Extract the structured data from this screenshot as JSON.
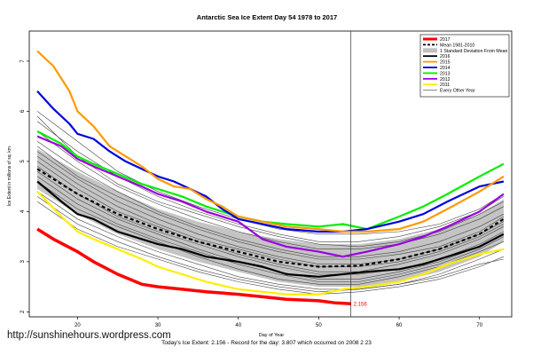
{
  "chart_data": {
    "type": "line",
    "title": "Antarctic Sea Ice Extent Day 54 1978 to 2017",
    "xlabel": "Day of Year",
    "ylabel": "Ice Extent in millions of sq. km.",
    "xlim": [
      14,
      74
    ],
    "ylim": [
      1.9,
      7.6
    ],
    "xticks": [
      20,
      30,
      40,
      50,
      60,
      70
    ],
    "yticks": [
      2,
      3,
      4,
      5,
      6,
      7
    ],
    "current_day": 54,
    "last_value_label": "2.156",
    "legend_position": "top-right",
    "legend": [
      {
        "label": "2017",
        "color": "#ff0000",
        "style": "thick"
      },
      {
        "label": "Mean 1981-2010",
        "color": "#000000",
        "style": "dashed"
      },
      {
        "label": "1 Standard Deviation From Mean",
        "color": "#c0c0c0",
        "style": "band"
      },
      {
        "label": "2016",
        "color": "#000000",
        "style": "solid"
      },
      {
        "label": "2015",
        "color": "#ff9900",
        "style": "solid"
      },
      {
        "label": "2014",
        "color": "#0000dd",
        "style": "solid"
      },
      {
        "label": "2013",
        "color": "#00ee00",
        "style": "solid"
      },
      {
        "label": "2012",
        "color": "#9900dd",
        "style": "solid"
      },
      {
        "label": "2011",
        "color": "#ffee00",
        "style": "solid"
      },
      {
        "label": "Every Other Year",
        "color": "#555555",
        "style": "thin"
      }
    ],
    "mean": {
      "x": [
        15,
        20,
        25,
        30,
        35,
        40,
        45,
        50,
        55,
        60,
        65,
        70,
        73
      ],
      "values": [
        4.85,
        4.35,
        3.95,
        3.65,
        3.4,
        3.2,
        3.0,
        2.9,
        2.92,
        3.05,
        3.25,
        3.55,
        3.85
      ]
    },
    "std_band": {
      "x": [
        15,
        20,
        25,
        30,
        35,
        40,
        45,
        50,
        55,
        60,
        65,
        70,
        73
      ],
      "upper": [
        5.25,
        4.8,
        4.4,
        4.05,
        3.8,
        3.6,
        3.45,
        3.35,
        3.35,
        3.45,
        3.65,
        3.95,
        4.25
      ],
      "lower": [
        4.45,
        3.95,
        3.55,
        3.25,
        3.0,
        2.8,
        2.6,
        2.5,
        2.5,
        2.6,
        2.8,
        3.1,
        3.4
      ]
    },
    "series": [
      {
        "name": "2017",
        "color": "#ff0000",
        "width": 3.5,
        "x": [
          15,
          17,
          20,
          22,
          25,
          28,
          30,
          33,
          36,
          40,
          43,
          46,
          50,
          52,
          54
        ],
        "values": [
          3.65,
          3.45,
          3.2,
          3.0,
          2.75,
          2.55,
          2.5,
          2.45,
          2.4,
          2.35,
          2.3,
          2.25,
          2.22,
          2.18,
          2.16
        ]
      },
      {
        "name": "2016",
        "color": "#000000",
        "width": 2.2,
        "x": [
          15,
          18,
          20,
          22,
          25,
          28,
          30,
          33,
          36,
          40,
          43,
          46,
          50,
          53,
          56,
          60,
          63,
          66,
          70,
          73
        ],
        "values": [
          4.6,
          4.2,
          3.95,
          3.85,
          3.6,
          3.45,
          3.35,
          3.25,
          3.1,
          3.0,
          2.9,
          2.75,
          2.7,
          2.75,
          2.8,
          2.85,
          2.95,
          3.1,
          3.3,
          3.55
        ]
      },
      {
        "name": "2015",
        "color": "#ff9900",
        "width": 2.2,
        "x": [
          15,
          17,
          19,
          20,
          22,
          24,
          26,
          28,
          30,
          32,
          34,
          36,
          38,
          40,
          43,
          46,
          50,
          53,
          56,
          60,
          63,
          66,
          70,
          73
        ],
        "values": [
          7.2,
          6.9,
          6.4,
          6.0,
          5.7,
          5.3,
          5.1,
          4.9,
          4.65,
          4.5,
          4.45,
          4.25,
          4.1,
          3.9,
          3.8,
          3.7,
          3.65,
          3.6,
          3.6,
          3.65,
          3.8,
          4.05,
          4.4,
          4.7
        ]
      },
      {
        "name": "2014",
        "color": "#0000dd",
        "width": 2.2,
        "x": [
          15,
          17,
          19,
          20,
          22,
          24,
          26,
          28,
          30,
          32,
          34,
          36,
          38,
          40,
          43,
          46,
          50,
          53,
          56,
          60,
          63,
          66,
          70,
          73
        ],
        "values": [
          6.4,
          6.05,
          5.75,
          5.55,
          5.45,
          5.2,
          5.0,
          4.85,
          4.7,
          4.6,
          4.45,
          4.3,
          4.05,
          3.85,
          3.75,
          3.65,
          3.6,
          3.6,
          3.65,
          3.8,
          3.95,
          4.2,
          4.5,
          4.6
        ]
      },
      {
        "name": "2013",
        "color": "#00ee00",
        "width": 2.2,
        "x": [
          15,
          18,
          20,
          22,
          25,
          28,
          30,
          33,
          36,
          40,
          43,
          46,
          50,
          53,
          56,
          60,
          63,
          66,
          70,
          73
        ],
        "values": [
          5.6,
          5.35,
          5.1,
          4.95,
          4.75,
          4.55,
          4.45,
          4.3,
          4.1,
          3.9,
          3.8,
          3.75,
          3.7,
          3.75,
          3.65,
          3.9,
          4.1,
          4.35,
          4.7,
          4.95
        ]
      },
      {
        "name": "2012",
        "color": "#9900dd",
        "width": 2.2,
        "x": [
          15,
          18,
          20,
          22,
          25,
          28,
          30,
          33,
          36,
          40,
          43,
          46,
          50,
          53,
          56,
          60,
          63,
          66,
          70,
          73
        ],
        "values": [
          5.5,
          5.3,
          5.05,
          4.9,
          4.7,
          4.5,
          4.35,
          4.2,
          4.0,
          3.8,
          3.45,
          3.3,
          3.2,
          3.1,
          3.2,
          3.35,
          3.5,
          3.7,
          4.0,
          4.35
        ]
      },
      {
        "name": "2011",
        "color": "#ffee00",
        "width": 2.2,
        "x": [
          15,
          18,
          20,
          22,
          25,
          28,
          30,
          33,
          36,
          40,
          43,
          46,
          50,
          53,
          56,
          60,
          63,
          66,
          70,
          73
        ],
        "values": [
          4.4,
          3.9,
          3.6,
          3.45,
          3.25,
          3.05,
          2.9,
          2.75,
          2.6,
          2.45,
          2.4,
          2.35,
          2.35,
          2.45,
          2.5,
          2.6,
          2.75,
          2.95,
          3.15,
          3.25
        ]
      }
    ],
    "other_years": [
      {
        "x": [
          15,
          20,
          25,
          30,
          35,
          40,
          45,
          50,
          55,
          60,
          65,
          70,
          73
        ],
        "values": [
          6.0,
          5.4,
          4.8,
          4.4,
          4.1,
          3.85,
          3.65,
          3.55,
          3.55,
          3.6,
          3.75,
          4.05,
          4.35
        ]
      },
      {
        "x": [
          15,
          20,
          25,
          30,
          35,
          40,
          45,
          50,
          55,
          60,
          65,
          70,
          73
        ],
        "values": [
          5.8,
          5.2,
          4.7,
          4.3,
          4.0,
          3.75,
          3.55,
          3.4,
          3.4,
          3.5,
          3.7,
          4.0,
          4.3
        ]
      },
      {
        "x": [
          15,
          20,
          25,
          30,
          35,
          40,
          45,
          50,
          55,
          60,
          65,
          70,
          73
        ],
        "values": [
          5.6,
          5.0,
          4.5,
          4.15,
          3.85,
          3.6,
          3.4,
          3.25,
          3.25,
          3.35,
          3.55,
          3.85,
          4.1
        ]
      },
      {
        "x": [
          15,
          20,
          25,
          30,
          35,
          40,
          45,
          50,
          55,
          60,
          65,
          70,
          73
        ],
        "values": [
          5.4,
          4.85,
          4.4,
          4.0,
          3.7,
          3.45,
          3.25,
          3.1,
          3.1,
          3.2,
          3.4,
          3.7,
          3.95
        ]
      },
      {
        "x": [
          15,
          20,
          25,
          30,
          35,
          40,
          45,
          50,
          55,
          60,
          65,
          70,
          73
        ],
        "values": [
          5.2,
          4.65,
          4.2,
          3.85,
          3.55,
          3.3,
          3.1,
          2.95,
          2.95,
          3.05,
          3.25,
          3.55,
          3.8
        ]
      },
      {
        "x": [
          15,
          20,
          25,
          30,
          35,
          40,
          45,
          50,
          55,
          60,
          65,
          70,
          73
        ],
        "values": [
          5.0,
          4.45,
          4.0,
          3.7,
          3.4,
          3.15,
          2.95,
          2.8,
          2.8,
          2.95,
          3.15,
          3.45,
          3.7
        ]
      },
      {
        "x": [
          15,
          20,
          25,
          30,
          35,
          40,
          45,
          50,
          55,
          60,
          65,
          70,
          73
        ],
        "values": [
          4.8,
          4.25,
          3.85,
          3.55,
          3.25,
          3.0,
          2.8,
          2.65,
          2.65,
          2.8,
          3.0,
          3.3,
          3.55
        ]
      },
      {
        "x": [
          15,
          20,
          25,
          30,
          35,
          40,
          45,
          50,
          55,
          60,
          65,
          70,
          73
        ],
        "values": [
          4.6,
          4.05,
          3.7,
          3.4,
          3.1,
          2.85,
          2.65,
          2.55,
          2.55,
          2.7,
          2.9,
          3.2,
          3.4
        ]
      },
      {
        "x": [
          15,
          20,
          25,
          30,
          35,
          40,
          45,
          50,
          55,
          60,
          65,
          70,
          73
        ],
        "values": [
          4.4,
          3.85,
          3.5,
          3.2,
          2.95,
          2.7,
          2.55,
          2.45,
          2.45,
          2.55,
          2.75,
          3.05,
          3.25
        ]
      },
      {
        "x": [
          15,
          20,
          25,
          30,
          35,
          40,
          45,
          50,
          55,
          60,
          65,
          70,
          73
        ],
        "values": [
          4.2,
          3.65,
          3.3,
          3.05,
          2.8,
          2.6,
          2.45,
          2.35,
          2.4,
          2.5,
          2.65,
          2.9,
          3.1
        ]
      },
      {
        "x": [
          15,
          20,
          25,
          30,
          35,
          40,
          45,
          50,
          55,
          60,
          65,
          70,
          73
        ],
        "values": [
          5.9,
          5.1,
          4.55,
          4.2,
          3.95,
          3.7,
          3.5,
          3.35,
          3.3,
          3.4,
          3.6,
          3.95,
          4.2
        ]
      },
      {
        "x": [
          15,
          20,
          25,
          30,
          35,
          40,
          45,
          50,
          55,
          60,
          65,
          70,
          73
        ],
        "values": [
          5.3,
          4.7,
          4.3,
          3.95,
          3.65,
          3.4,
          3.2,
          3.05,
          3.05,
          3.15,
          3.3,
          3.6,
          3.9
        ]
      },
      {
        "x": [
          15,
          20,
          25,
          30,
          35,
          40,
          45,
          50,
          55,
          60,
          65,
          70,
          73
        ],
        "values": [
          4.9,
          4.35,
          3.9,
          3.6,
          3.35,
          3.1,
          2.9,
          2.75,
          2.75,
          2.85,
          3.05,
          3.35,
          3.6
        ]
      },
      {
        "x": [
          15,
          20,
          25,
          30,
          35,
          40,
          45,
          50,
          55,
          60,
          65,
          70,
          73
        ],
        "values": [
          4.3,
          3.75,
          3.4,
          3.1,
          2.85,
          2.65,
          2.5,
          2.4,
          2.45,
          2.55,
          2.7,
          2.95,
          3.05
        ]
      },
      {
        "x": [
          15,
          20,
          25,
          30,
          35,
          40,
          45,
          50,
          55,
          60,
          65,
          70,
          73
        ],
        "values": [
          5.1,
          4.55,
          4.1,
          3.75,
          3.45,
          3.25,
          3.05,
          2.9,
          2.9,
          3.0,
          3.2,
          3.5,
          3.75
        ]
      },
      {
        "x": [
          15,
          20,
          25,
          30,
          35,
          40,
          45,
          50,
          55,
          60,
          65,
          70,
          73
        ],
        "values": [
          4.7,
          4.15,
          3.75,
          3.45,
          3.2,
          2.95,
          2.75,
          2.6,
          2.6,
          2.75,
          2.95,
          3.25,
          3.5
        ]
      }
    ]
  },
  "footer": {
    "today_line": "Today's Ice Extent: 2.156  - Record for the day: 3.807 which occurred on 2008 2 23"
  },
  "watermark": "http://sunshinehours.wordpress.com"
}
